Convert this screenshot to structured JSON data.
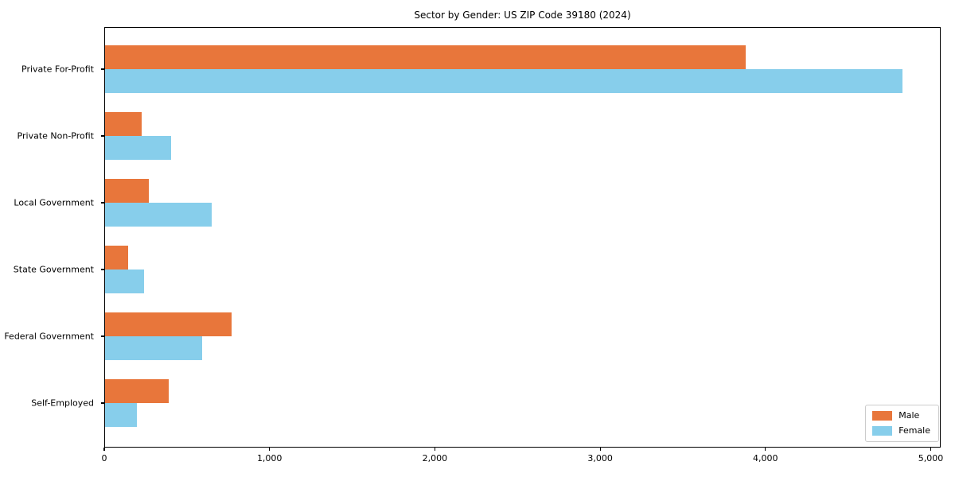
{
  "chart_data": {
    "type": "bar",
    "orientation": "horizontal",
    "title": "Sector by Gender: US ZIP Code 39180 (2024)",
    "categories": [
      "Private For-Profit",
      "Private Non-Profit",
      "Local Government",
      "State Government",
      "Federal Government",
      "Self-Employed"
    ],
    "series": [
      {
        "name": "Male",
        "color": "#e8763b",
        "values": [
          3880,
          225,
          270,
          145,
          770,
          390
        ]
      },
      {
        "name": "Female",
        "color": "#87ceeb",
        "values": [
          4830,
          405,
          650,
          240,
          590,
          195
        ]
      }
    ],
    "xlabel": "",
    "ylabel": "",
    "xlim": [
      0,
      5000
    ],
    "xticks": [
      {
        "value": 0,
        "label": "0"
      },
      {
        "value": 1000,
        "label": "1,000"
      },
      {
        "value": 2000,
        "label": "2,000"
      },
      {
        "value": 3000,
        "label": "3,000"
      },
      {
        "value": 4000,
        "label": "4,000"
      },
      {
        "value": 5000,
        "label": "5,000"
      }
    ],
    "grid": false,
    "legend_position": "lower right"
  },
  "colors": {
    "male": "#e8763b",
    "female": "#87ceeb",
    "axis": "#000000",
    "background": "#ffffff",
    "legend_border": "#cccccc"
  }
}
